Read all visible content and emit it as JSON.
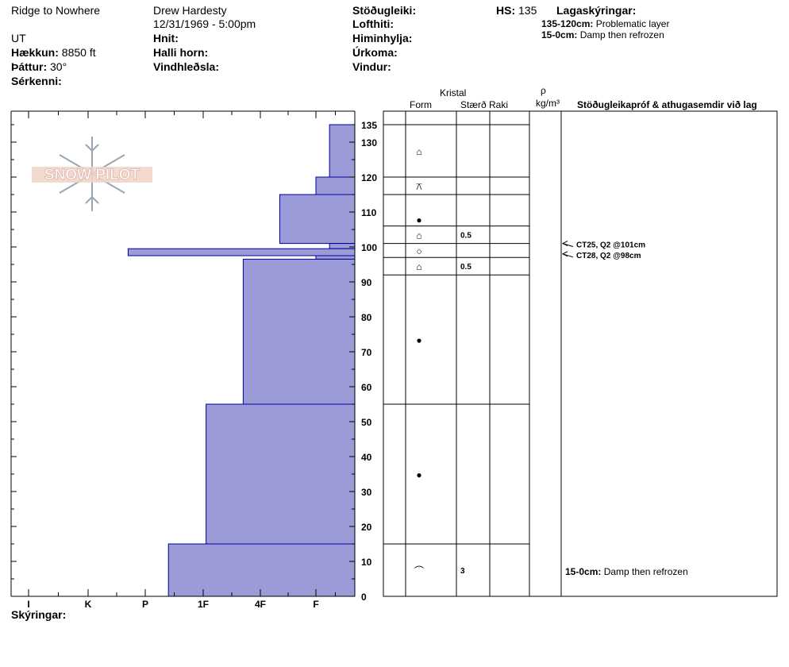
{
  "header": {
    "location": "Ridge to Nowhere",
    "observer": "Drew Hardesty",
    "datetime": "12/31/1969 - 5:00pm",
    "state": "UT",
    "elevation_label": "Hækkun:",
    "elevation_value": "8850 ft",
    "aspect_label": "Þáttur:",
    "aspect_value": "30°",
    "features_label": "Sérkenni:",
    "coords_label": "Hnit:",
    "slope_angle_label": "Halli horn:",
    "wind_loading_label": "Vindhleðsla:",
    "stability_label": "Stöðugleiki:",
    "air_temp_label": "Lofthiti:",
    "sky_label": "Himinhylja:",
    "precip_label": "Úrkoma:",
    "wind_label": "Vindur:",
    "hs_label": "HS:",
    "hs_value": "135",
    "layer_notes_label": "Lagaskýringar:",
    "layer_notes": [
      {
        "range": "135-120cm:",
        "text": "Problematic layer"
      },
      {
        "range": "15-0cm:",
        "text": "Damp then refrozen"
      }
    ],
    "comments_label": "Skýringar:"
  },
  "logo_text": "SNOW PILOT",
  "table_headers": {
    "crystal": "Kristal",
    "form": "Form",
    "size": "Stærð",
    "moisture": "Raki",
    "rho": "ρ",
    "density_unit": "kg/m³",
    "tests": "Stöðugleikapróf & athugasemdir við lag"
  },
  "colors": {
    "fill": "#9b9bd8",
    "stroke": "#0000a0",
    "accent": "#000000"
  },
  "chart_data": {
    "type": "bar",
    "orientation": "horizontal",
    "y_axis": {
      "label": "",
      "min": 0,
      "max": 135,
      "ticks": [
        0,
        10,
        20,
        30,
        40,
        50,
        60,
        70,
        80,
        90,
        100,
        110,
        120,
        130,
        135
      ]
    },
    "x_axis": {
      "categories": [
        "I",
        "K",
        "P",
        "1F",
        "4F",
        "F"
      ]
    },
    "hardness_scale": {
      "F": 1,
      "4F": 2,
      "1F": 3,
      "P": 4,
      "K": 5,
      "I": 6
    },
    "layers": [
      {
        "top": 135,
        "bottom": 120,
        "hardness": 0.65
      },
      {
        "top": 120,
        "bottom": 115,
        "hardness": 1.0
      },
      {
        "top": 115,
        "bottom": 101,
        "hardness": 1.65
      },
      {
        "top": 101,
        "bottom": 99.5,
        "hardness": 0.65
      },
      {
        "top": 99.5,
        "bottom": 97.5,
        "hardness": 4.3
      },
      {
        "top": 97.5,
        "bottom": 96.5,
        "hardness": 1.0
      },
      {
        "top": 96.5,
        "bottom": 55,
        "hardness": 2.3
      },
      {
        "top": 55,
        "bottom": 15,
        "hardness": 2.95
      },
      {
        "top": 15,
        "bottom": 0,
        "hardness": 3.6
      }
    ],
    "grain_rows": [
      {
        "top": 135,
        "bottom": 120,
        "form": "⌂",
        "size": ""
      },
      {
        "top": 120,
        "bottom": 115,
        "form": "⚻",
        "size": ""
      },
      {
        "top": 115,
        "bottom": 101,
        "form": "●",
        "size": ""
      },
      {
        "top": 106,
        "bottom": 101,
        "form": "⌂",
        "size": "0.5"
      },
      {
        "top": 101,
        "bottom": 97,
        "form": "○",
        "size": ""
      },
      {
        "top": 97,
        "bottom": 92,
        "form": "⌂",
        "size": "0.5"
      },
      {
        "top": 92,
        "bottom": 55,
        "form": "●",
        "size": ""
      },
      {
        "top": 55,
        "bottom": 15,
        "form": "●",
        "size": ""
      },
      {
        "top": 15,
        "bottom": 0,
        "form": "⌒",
        "size": "3"
      }
    ],
    "table_lines": [
      135,
      120,
      115,
      106,
      101,
      97,
      92,
      55,
      15
    ],
    "tests": [
      {
        "depth": 101,
        "text": "CT25, Q2 @101cm"
      },
      {
        "depth": 98,
        "text": "CT28, Q2 @98cm"
      }
    ],
    "table_comments": [
      {
        "depth": 7,
        "label": "15-0cm:",
        "text": "Damp then refrozen"
      }
    ]
  }
}
